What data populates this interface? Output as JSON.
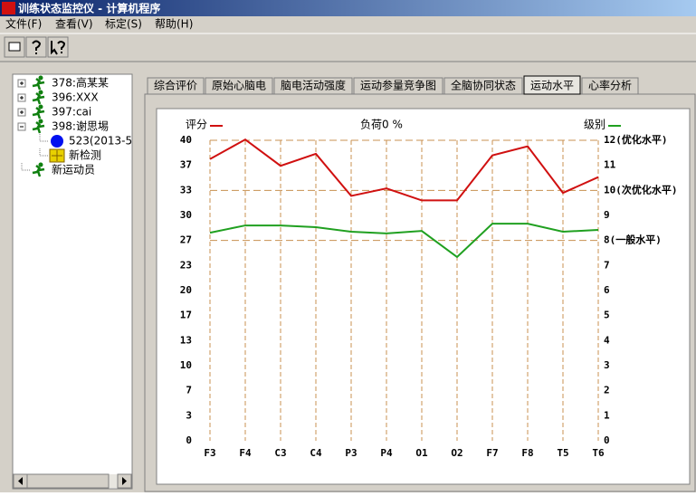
{
  "window": {
    "title": "训练状态监控仪 - 计算机程序"
  },
  "menu": [
    "文件(F)",
    "查看(V)",
    "标定(S)",
    "帮助(H)"
  ],
  "tree": [
    {
      "label": "378:高某某",
      "expandable": true,
      "expanded": false
    },
    {
      "label": "396:XXX",
      "expandable": true,
      "expanded": false
    },
    {
      "label": "397:cai",
      "expandable": true,
      "expanded": false
    },
    {
      "label": "398:谢思埸",
      "expandable": true,
      "expanded": true,
      "children": [
        {
          "label": "523(2013-5"
        },
        {
          "label": "新检测"
        }
      ]
    },
    {
      "label": "新运动员",
      "expandable": false,
      "expanded": false
    }
  ],
  "tabs": [
    "综合评价",
    "原始心脑电",
    "脑电活动强度",
    "运动参量竞争图",
    "全脑协同状态",
    "运动水平",
    "心率分析"
  ],
  "active_tab": 5,
  "chart_data": {
    "type": "line",
    "title": "负荷0 %",
    "categories": [
      "F3",
      "F4",
      "C3",
      "C4",
      "P3",
      "P4",
      "O1",
      "O2",
      "F7",
      "F8",
      "T5",
      "T6"
    ],
    "series": [
      {
        "name": "评分",
        "color": "#d01010",
        "values": [
          37.5,
          40.1,
          36.6,
          38.2,
          32.6,
          33.6,
          32.0,
          32.0,
          38.0,
          39.2,
          33.0,
          35.1
        ]
      },
      {
        "name": "级别",
        "color": "#20a020",
        "axis": "y2",
        "values": [
          8.31,
          8.6,
          8.6,
          8.53,
          8.35,
          8.28,
          8.38,
          7.34,
          8.67,
          8.67,
          8.35,
          8.42
        ]
      }
    ],
    "ylim": [
      0,
      40
    ],
    "yticks": [
      0,
      {
        "value": 3.33,
        "label": "3"
      },
      {
        "value": 6.67,
        "label": "7"
      },
      10,
      {
        "value": 13.33,
        "label": "13"
      },
      {
        "value": 16.67,
        "label": "17"
      },
      20,
      {
        "value": 23.33,
        "label": "23"
      },
      {
        "value": 26.67,
        "label": "27"
      },
      30,
      {
        "value": 33.33,
        "label": "33"
      },
      {
        "value": 36.67,
        "label": "37"
      },
      40
    ],
    "y2lim": [
      0,
      12
    ],
    "y2ticks": [
      0,
      1,
      2,
      3,
      4,
      5,
      6,
      7,
      {
        "value": 8,
        "label": "8(一般水平)"
      },
      9,
      {
        "value": 10,
        "label": "10(次优化水平)"
      },
      11,
      {
        "value": 12,
        "label": "12(优化水平)"
      }
    ],
    "y2_reference_lines": [
      8,
      10,
      12
    ]
  }
}
